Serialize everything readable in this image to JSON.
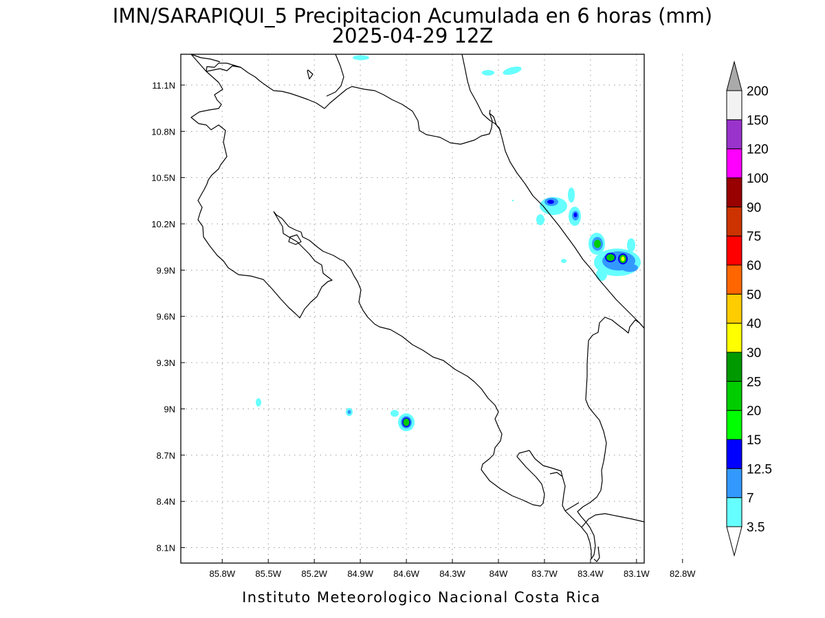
{
  "title": {
    "line1": "IMN/SARAPIQUI_5 Precipitacion Acumulada en 6 horas (mm)",
    "line2": "2025-04-29 12Z"
  },
  "footer": "Instituto Meteorologico Nacional Costa Rica",
  "map": {
    "lon_range": [
      -86.07,
      -83.05
    ],
    "lat_range": [
      8.0,
      11.3
    ],
    "x_ticks": [
      {
        "value": -85.8,
        "label": "85.8W"
      },
      {
        "value": -85.5,
        "label": "85.5W"
      },
      {
        "value": -85.2,
        "label": "85.2W"
      },
      {
        "value": -84.9,
        "label": "84.9W"
      },
      {
        "value": -84.6,
        "label": "84.6W"
      },
      {
        "value": -84.3,
        "label": "84.3W"
      },
      {
        "value": -84.0,
        "label": "84W"
      },
      {
        "value": -83.7,
        "label": "83.7W"
      },
      {
        "value": -83.4,
        "label": "83.4W"
      },
      {
        "value": -83.1,
        "label": "83.1W"
      },
      {
        "value": -82.8,
        "label": "82.8W"
      }
    ],
    "y_ticks": [
      {
        "value": 11.1,
        "label": "11.1N"
      },
      {
        "value": 10.8,
        "label": "10.8N"
      },
      {
        "value": 10.5,
        "label": "10.5N"
      },
      {
        "value": 10.2,
        "label": "10.2N"
      },
      {
        "value": 9.9,
        "label": "9.9N"
      },
      {
        "value": 9.6,
        "label": "9.6N"
      },
      {
        "value": 9.3,
        "label": "9.3N"
      },
      {
        "value": 9.0,
        "label": "9N"
      },
      {
        "value": 8.7,
        "label": "8.7N"
      },
      {
        "value": 8.4,
        "label": "8.4N"
      },
      {
        "value": 8.1,
        "label": "8.1N"
      }
    ],
    "grid": true
  },
  "colorbar": {
    "levels": [
      "3.5",
      "7",
      "12.5",
      "15",
      "20",
      "25",
      "30",
      "40",
      "50",
      "60",
      "75",
      "90",
      "100",
      "120",
      "150",
      "200"
    ],
    "colors": [
      "#66ffff",
      "#3399ff",
      "#0000ff",
      "#00ff00",
      "#00cc00",
      "#009900",
      "#ffff00",
      "#ffcc00",
      "#ff6600",
      "#ff0000",
      "#cc3300",
      "#990000",
      "#ff00ff",
      "#9933cc",
      "#f2f2f2",
      "#aaaaaa"
    ]
  }
}
